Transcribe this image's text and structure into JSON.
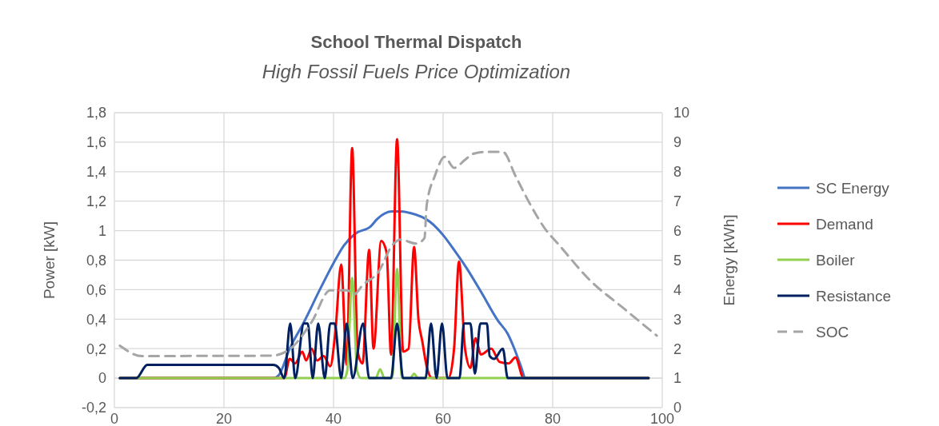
{
  "chart_data": {
    "type": "line",
    "title": "School Thermal Dispatch",
    "subtitle": "High Fossil Fuels Price Optimization",
    "ylabel": "Power [kW]",
    "y2label": "Energy [kWh]",
    "xlim": [
      0,
      100
    ],
    "xticks": [
      0,
      20,
      40,
      60,
      80,
      100
    ],
    "ylim": [
      -0.2,
      1.8
    ],
    "yticks": [
      {
        "value": -0.2,
        "label": "-0,2"
      },
      0,
      {
        "value": 0.2,
        "label": "0,2"
      },
      {
        "value": 0.4,
        "label": "0,4"
      },
      {
        "value": 0.6,
        "label": "0,6"
      },
      {
        "value": 0.8,
        "label": "0,8"
      },
      1,
      {
        "value": 1.2,
        "label": "1,2"
      },
      {
        "value": 1.4,
        "label": "1,4"
      },
      {
        "value": 1.6,
        "label": "1,6"
      },
      {
        "value": 1.8,
        "label": "1,8"
      }
    ],
    "y2lim": [
      0,
      10
    ],
    "y2ticks": [
      0,
      1,
      2,
      3,
      4,
      5,
      6,
      7,
      8,
      9,
      10
    ],
    "grid": true,
    "legend": "right",
    "series": [
      {
        "name": "SC Energy",
        "color": "#4472c4",
        "x": [
          1,
          29,
          30,
          32,
          34.6,
          37.5,
          40,
          41.9,
          44,
          46.8,
          48,
          50.7,
          52,
          54,
          57.6,
          60,
          62,
          64.4,
          67,
          70,
          71.8,
          73,
          74.3,
          75,
          97.5
        ],
        "values": [
          0,
          0,
          0.02,
          0.2,
          0.38,
          0.6,
          0.78,
          0.9,
          0.98,
          1.03,
          1.08,
          1.13,
          1.13,
          1.12,
          1.06,
          0.97,
          0.87,
          0.74,
          0.58,
          0.39,
          0.3,
          0.2,
          0.07,
          0,
          0
        ]
      },
      {
        "name": "Demand",
        "color": "#ff0000",
        "x": [
          1,
          30,
          31,
          32,
          33,
          34.3,
          35,
          36,
          37,
          38.2,
          39.4,
          40.3,
          41.4,
          42.4,
          43.4,
          44.4,
          45.3,
          46.5,
          47.3,
          48.7,
          49.7,
          50.5,
          51.6,
          52.7,
          53.7,
          54.7,
          55.5,
          56.2,
          57,
          58,
          61,
          62,
          62.9,
          64,
          65,
          65.9,
          66.9,
          68.8,
          70.3,
          72,
          73.2,
          74.7,
          97.5
        ],
        "values": [
          0,
          0,
          0,
          0.13,
          0.1,
          0.18,
          0.12,
          0.2,
          0.12,
          0.15,
          0.08,
          0.3,
          0.77,
          0.09,
          1.56,
          0.18,
          0.1,
          0.87,
          0.2,
          0.93,
          0.85,
          0.16,
          1.62,
          0.18,
          0.2,
          0.89,
          0.4,
          0.25,
          0.08,
          0,
          0,
          0.2,
          0.79,
          0.2,
          0.07,
          0.27,
          0.16,
          0.2,
          0.11,
          0.1,
          0.14,
          0,
          0
        ]
      },
      {
        "name": "Boiler",
        "color": "#92d050",
        "x": [
          1,
          42,
          42.5,
          43.4,
          44.3,
          45,
          47.7,
          48.5,
          49.3,
          50.7,
          51.6,
          52.5,
          54,
          54.7,
          55.4,
          97.5
        ],
        "values": [
          0,
          0,
          0.05,
          0.68,
          0.05,
          0,
          0,
          0.06,
          0,
          0,
          0.74,
          0,
          0,
          0.03,
          0,
          0
        ]
      },
      {
        "name": "Resistance",
        "color": "#002060",
        "x": [
          1,
          4,
          6,
          29,
          30,
          31,
          32.1,
          33,
          34.6,
          35.3,
          36.2,
          37.2,
          38.4,
          39.4,
          40.2,
          41.4,
          42.4,
          43.5,
          45.4,
          46.5,
          50.5,
          51.6,
          52.7,
          56.8,
          57.8,
          58.8,
          59.8,
          60.8,
          63,
          63.8,
          65,
          65.8,
          66.8,
          68,
          68.5,
          69.3,
          70.9,
          71.8,
          97.5
        ],
        "values": [
          0,
          0,
          0.09,
          0.09,
          0.07,
          0,
          0.37,
          0,
          0.37,
          0.37,
          0,
          0.37,
          0,
          0.37,
          0.37,
          0,
          0.37,
          0,
          0.37,
          0,
          0,
          0.37,
          0,
          0,
          0.37,
          0,
          0.37,
          0,
          0,
          0.37,
          0.37,
          0.03,
          0.37,
          0.37,
          0.15,
          0.13,
          0.2,
          0,
          0
        ]
      },
      {
        "name": "SOC",
        "color": "#a5a5a5",
        "axis": "y2",
        "line_style": "dashed",
        "x": [
          1,
          5,
          28.7,
          32,
          36,
          39.4,
          42.4,
          43.8,
          45.3,
          48.2,
          50.7,
          52.2,
          55.1,
          56.6,
          57,
          58.5,
          60.3,
          62,
          64,
          65.4,
          67.9,
          70.9,
          73.2,
          75.7,
          78.7,
          81,
          86.9,
          92.8,
          99
        ],
        "values": [
          2.1,
          1.75,
          1.76,
          1.98,
          2.9,
          3.98,
          3.98,
          3.85,
          4.15,
          4.6,
          5.5,
          5.7,
          5.56,
          5.75,
          6.86,
          7.86,
          8.5,
          8.13,
          8.4,
          8.6,
          8.67,
          8.67,
          7.86,
          6.96,
          6.04,
          5.55,
          4.3,
          3.39,
          2.44
        ]
      }
    ]
  }
}
